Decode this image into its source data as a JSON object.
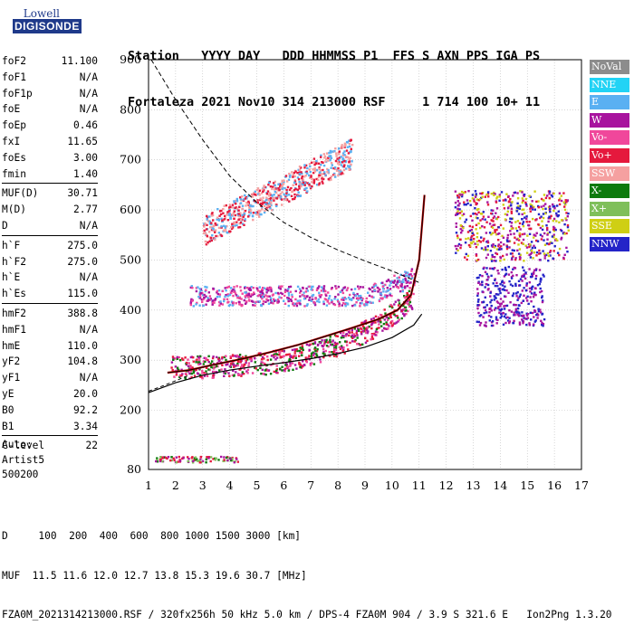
{
  "logo": {
    "line1": "Lowell",
    "line2": "DIGISONDE"
  },
  "header": {
    "row1": "Station   YYYY DAY   DDD HHMMSS P1  FFS S AXN PPS IGA PS",
    "row2": "Fortaleza 2021 Nov10 314 213000 RSF     1 714 100 10+ 11"
  },
  "params": {
    "group1": [
      {
        "k": "foF2",
        "v": "11.100"
      },
      {
        "k": "foF1",
        "v": "N/A"
      },
      {
        "k": "foF1p",
        "v": "N/A"
      },
      {
        "k": "foE",
        "v": "N/A"
      },
      {
        "k": "foEp",
        "v": "0.46"
      },
      {
        "k": "fxI",
        "v": "11.65"
      },
      {
        "k": "foEs",
        "v": "3.00"
      },
      {
        "k": "fmin",
        "v": "1.40"
      }
    ],
    "group2": [
      {
        "k": "MUF(D)",
        "v": "30.71"
      },
      {
        "k": "M(D)",
        "v": "2.77"
      },
      {
        "k": "D",
        "v": "N/A"
      }
    ],
    "group3": [
      {
        "k": "h`F",
        "v": "275.0"
      },
      {
        "k": "h`F2",
        "v": "275.0"
      },
      {
        "k": "h`E",
        "v": "N/A"
      },
      {
        "k": "h`Es",
        "v": "115.0"
      }
    ],
    "group4": [
      {
        "k": "hmF2",
        "v": "388.8"
      },
      {
        "k": "hmF1",
        "v": "N/A"
      },
      {
        "k": "hmE",
        "v": "110.0"
      },
      {
        "k": "yF2",
        "v": "104.8"
      },
      {
        "k": "yF1",
        "v": "N/A"
      },
      {
        "k": "yE",
        "v": "20.0"
      },
      {
        "k": "B0",
        "v": "92.2"
      },
      {
        "k": "B1",
        "v": "3.34"
      }
    ],
    "group5": [
      {
        "k": "C-level",
        "v": "22"
      }
    ]
  },
  "auto": {
    "line1": "Auto:",
    "line2": "Artist5",
    "line3": "500200"
  },
  "footer": {
    "line1": "D     100  200  400  600  800 1000 1500 3000 [km]",
    "line2": "MUF  11.5 11.6 12.0 12.7 13.8 15.3 19.6 30.7 [MHz]",
    "line3": "FZA0M_2021314213000.RSF / 320fx256h 50 kHz 5.0 km / DPS-4 FZA0M 904 / 3.9 S 321.6 E   Ion2Png 1.3.20"
  },
  "legend": [
    {
      "label": "NoVal",
      "color": "#8c8c8c"
    },
    {
      "label": "NNE",
      "color": "#22d3f5"
    },
    {
      "label": "E",
      "color": "#5ab0f2"
    },
    {
      "label": "W",
      "color": "#a8139e"
    },
    {
      "label": "Vo-",
      "color": "#f0479b"
    },
    {
      "label": "Vo+",
      "color": "#e5193d"
    },
    {
      "label": "SSW",
      "color": "#f5a0a0"
    },
    {
      "label": "X-",
      "color": "#0d7a0d"
    },
    {
      "label": "X+",
      "color": "#7fbf5a"
    },
    {
      "label": "SSE",
      "color": "#cfcf14"
    },
    {
      "label": "NNW",
      "color": "#2424c8"
    }
  ],
  "chart_data": {
    "type": "scatter",
    "x_ticks": [
      1,
      2,
      3,
      4,
      5,
      6,
      7,
      8,
      9,
      10,
      11,
      12,
      13,
      14,
      15,
      16,
      17
    ],
    "y_ticks": [
      80,
      200,
      300,
      400,
      500,
      600,
      700,
      800,
      900
    ],
    "xlim": [
      1,
      17
    ],
    "ylim": [
      80,
      900
    ],
    "grid": true,
    "legend_position": "right",
    "trace_o_virtual": [
      [
        1.7,
        275
      ],
      [
        2.5,
        280
      ],
      [
        3.5,
        292
      ],
      [
        4.5,
        303
      ],
      [
        5.5,
        316
      ],
      [
        6.5,
        330
      ],
      [
        7.5,
        347
      ],
      [
        8.5,
        364
      ],
      [
        9.5,
        382
      ],
      [
        10.2,
        400
      ],
      [
        10.7,
        430
      ],
      [
        11.0,
        500
      ],
      [
        11.2,
        630
      ]
    ],
    "trace_true_height": [
      [
        1.0,
        235
      ],
      [
        2,
        255
      ],
      [
        3,
        270
      ],
      [
        4,
        280
      ],
      [
        5,
        288
      ],
      [
        6,
        295
      ],
      [
        7,
        303
      ],
      [
        8,
        313
      ],
      [
        9,
        326
      ],
      [
        10,
        345
      ],
      [
        10.8,
        370
      ],
      [
        11.1,
        392
      ]
    ],
    "trace_mufd_dashed": [
      [
        1.1,
        900
      ],
      [
        2,
        820
      ],
      [
        3,
        740
      ],
      [
        4,
        668
      ],
      [
        5,
        615
      ],
      [
        6,
        575
      ],
      [
        7,
        545
      ],
      [
        8,
        520
      ],
      [
        9,
        498
      ],
      [
        10,
        478
      ],
      [
        11,
        455
      ]
    ],
    "trace_lower_dashed": [
      [
        1,
        238
      ],
      [
        1.6,
        250
      ],
      [
        2.5,
        270
      ]
    ],
    "clusters": [
      {
        "name": "F-trace",
        "xr": [
          1.8,
          10.8
        ],
        "yr": [
          260,
          400
        ],
        "colors": [
          "#e5193d",
          "#0d7a0d",
          "#f0479b",
          "#a8139e"
        ]
      },
      {
        "name": "F-upper",
        "xr": [
          2.5,
          10.8
        ],
        "yr": [
          400,
          470
        ],
        "colors": [
          "#a8139e",
          "#5ab0f2",
          "#f0479b"
        ]
      },
      {
        "name": "Es",
        "xr": [
          1.2,
          4.3
        ],
        "yr": [
          96,
          108
        ],
        "colors": [
          "#a8139e",
          "#7fbf5a",
          "#0d7a0d",
          "#e5193d"
        ]
      },
      {
        "name": "multi-hop",
        "xr": [
          3,
          8.5
        ],
        "yr": [
          540,
          720
        ],
        "colors": [
          "#f5a0a0",
          "#5ab0f2",
          "#e5193d"
        ]
      },
      {
        "name": "spread",
        "xr": [
          12.3,
          16.5
        ],
        "yr": [
          500,
          640
        ],
        "colors": [
          "#a8139e",
          "#cfcf14",
          "#2424c8",
          "#e5193d"
        ]
      },
      {
        "name": "spread-low",
        "xr": [
          13.1,
          15.6
        ],
        "yr": [
          370,
          490
        ],
        "colors": [
          "#2424c8",
          "#a8139e"
        ]
      }
    ]
  }
}
